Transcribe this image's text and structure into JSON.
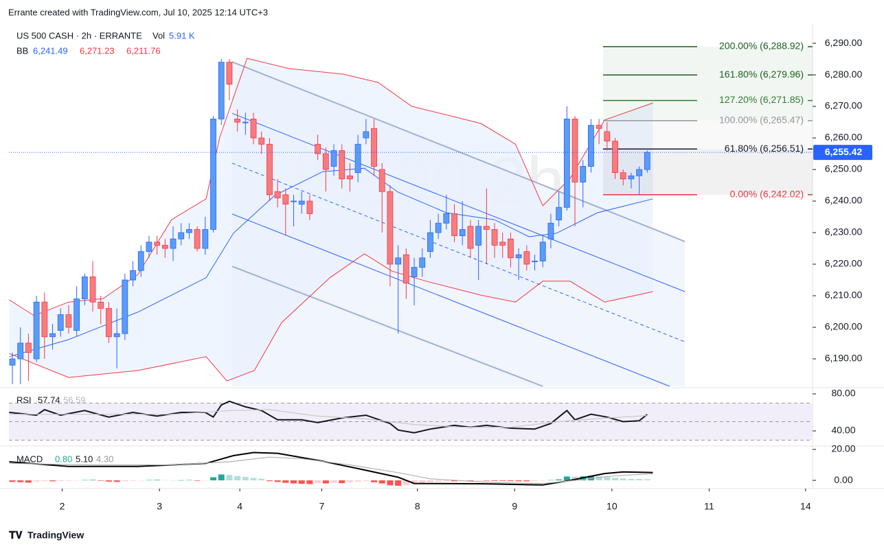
{
  "page": {
    "attribution": "Errante created with TradingView.com, Jul 10, 2025 12:14 UTC+3",
    "logo": "TradingView"
  },
  "chart_data": [
    {
      "type": "candlestick",
      "title": "US 500 CASH · 2h · ERRANTE",
      "volume": {
        "name": "Vol",
        "value": 5910,
        "label": "5.91 K"
      },
      "watermark": "US500  2h",
      "watermark_sub": "US 500 CASH",
      "up_color": "#5b9cf6",
      "down_color": "#f77c80",
      "x": [
        0,
        1,
        2,
        3,
        4,
        5,
        6,
        7,
        8,
        9,
        10,
        11,
        12,
        13,
        14,
        15,
        16,
        17,
        18,
        19,
        20,
        21,
        22,
        23,
        24,
        25,
        26,
        27,
        28,
        29,
        30,
        31,
        32,
        33,
        34,
        35,
        36,
        37,
        38,
        39,
        40,
        41,
        42,
        43,
        44,
        45,
        46,
        47,
        48,
        49,
        50,
        51,
        52,
        53,
        54,
        55,
        56,
        57,
        58,
        59,
        60,
        61,
        62,
        63,
        64,
        65,
        66,
        67,
        68,
        69,
        70,
        71,
        72,
        73,
        74,
        75,
        76,
        77,
        78,
        79
      ],
      "open": [
        6188,
        6190,
        6195,
        6190,
        6208,
        6197,
        6199,
        6204,
        6199,
        6209,
        6216,
        6208,
        6206,
        6197,
        6198,
        6215,
        6218,
        6224,
        6227,
        6226,
        6225,
        6228,
        6230,
        6231,
        6225,
        6231,
        6266,
        6284,
        6266,
        6265,
        6266,
        6260,
        6258,
        6243,
        6242,
        6240,
        6239,
        6240,
        6258,
        6255,
        6251,
        6256,
        6248,
        6249,
        6260,
        6263,
        6250,
        6243,
        6220,
        6223,
        6216,
        6219,
        6224,
        6230,
        6233,
        6236,
        6229,
        6232,
        6226,
        6232,
        6231,
        6227,
        6228,
        6222,
        6224,
        6221,
        6221,
        6228,
        6234,
        6238,
        6266,
        6246,
        6251,
        6264,
        6262,
        6259,
        6249,
        6247,
        6248,
        6250
      ],
      "high": [
        6192,
        6200,
        6198,
        6210,
        6211,
        6201,
        6206,
        6207,
        6213,
        6217,
        6221,
        6210,
        6208,
        6206,
        6217,
        6221,
        6226,
        6229,
        6229,
        6228,
        6232,
        6233,
        6233,
        6232,
        6235,
        6267,
        6285,
        6285,
        6269,
        6268,
        6268,
        6262,
        6260,
        6247,
        6244,
        6242,
        6243,
        6242,
        6261,
        6257,
        6258,
        6258,
        6252,
        6261,
        6266,
        6266,
        6252,
        6245,
        6226,
        6225,
        6222,
        6225,
        6234,
        6236,
        6242,
        6239,
        6240,
        6234,
        6234,
        6244,
        6233,
        6230,
        6230,
        6225,
        6226,
        6223,
        6229,
        6236,
        6243,
        6270,
        6267,
        6253,
        6266,
        6266,
        6265,
        6260,
        6250,
        6249,
        6251,
        6256
      ],
      "low": [
        6182,
        6182,
        6183,
        6189,
        6190,
        6193,
        6197,
        6198,
        6197,
        6207,
        6205,
        6201,
        6195,
        6187,
        6196,
        6213,
        6216,
        6222,
        6223,
        6222,
        6221,
        6226,
        6228,
        6224,
        6223,
        6230,
        6264,
        6272,
        6262,
        6261,
        6258,
        6255,
        6240,
        6238,
        6229,
        6232,
        6236,
        6234,
        6253,
        6243,
        6248,
        6244,
        6243,
        6246,
        6258,
        6248,
        6230,
        6213,
        6198,
        6209,
        6207,
        6216,
        6222,
        6228,
        6231,
        6227,
        6226,
        6222,
        6215,
        6220,
        6222,
        6222,
        6219,
        6215,
        6218,
        6218,
        6219,
        6225,
        6232,
        6237,
        6232,
        6238,
        6249,
        6258,
        6256,
        6247,
        6245,
        6244,
        6242,
        6249
      ],
      "close": [
        6190,
        6195,
        6192,
        6208,
        6197,
        6198,
        6204,
        6200,
        6209,
        6216,
        6208,
        6206,
        6197,
        6198,
        6215,
        6218,
        6224,
        6227,
        6226,
        6225,
        6228,
        6230,
        6231,
        6225,
        6231,
        6266,
        6284,
        6277,
        6265,
        6265,
        6260,
        6258,
        6242,
        6241,
        6239,
        6240,
        6240,
        6236,
        6255,
        6250,
        6256,
        6247,
        6247,
        6258,
        6262,
        6251,
        6243,
        6220,
        6222,
        6214,
        6219,
        6222,
        6230,
        6233,
        6236,
        6229,
        6231,
        6225,
        6232,
        6231,
        6226,
        6226,
        6222,
        6223,
        6220,
        6221,
        6227,
        6233,
        6238,
        6266,
        6246,
        6251,
        6264,
        6263,
        6259,
        6249,
        6247,
        6248,
        6250,
        6255.42
      ],
      "xlim": [
        -0.43,
        99.57
      ],
      "ylim": [
        6181.3,
        6296.1
      ],
      "xticks": [
        {
          "value": 6.2,
          "label": "2"
        },
        {
          "value": 18.3,
          "label": "3"
        },
        {
          "value": 28.3,
          "label": "4"
        },
        {
          "value": 38.5,
          "label": "7"
        },
        {
          "value": 50.4,
          "label": "8"
        },
        {
          "value": 62.5,
          "label": "9"
        },
        {
          "value": 74.6,
          "label": "10"
        },
        {
          "value": 86.7,
          "label": "11"
        },
        {
          "value": 98.7,
          "label": "14"
        }
      ],
      "yticks": [
        {
          "value": 6190,
          "label": "6,190.00"
        },
        {
          "value": 6200,
          "label": "6,200.00"
        },
        {
          "value": 6210,
          "label": "6,210.00"
        },
        {
          "value": 6220,
          "label": "6,220.00"
        },
        {
          "value": 6230,
          "label": "6,230.00"
        },
        {
          "value": 6240,
          "label": "6,240.00"
        },
        {
          "value": 6250,
          "label": "6,250.00"
        },
        {
          "value": 6260,
          "label": "6,260.00"
        },
        {
          "value": 6270,
          "label": "6,270.00"
        },
        {
          "value": 6280,
          "label": "6,280.00"
        },
        {
          "value": 6290,
          "label": "6,290.00"
        }
      ],
      "last_price": {
        "value": 6255.42,
        "label": "6,255.42",
        "color": "#2962ff"
      },
      "bollinger": {
        "name": "BB",
        "fill": "#e8f1fd",
        "legend": [
          {
            "value": 6241.49,
            "label": "6,241.49",
            "color": "#2962ff"
          },
          {
            "value": 6271.23,
            "label": "6,271.23",
            "color": "#f23645"
          },
          {
            "value": 6211.76,
            "label": "6,211.76",
            "color": "#f23645"
          }
        ],
        "lines": [
          {
            "color": "#2962ff",
            "x": [
              -0.4,
              7,
              15.6,
              24.1,
              27.5,
              32.6,
              38.6,
              43.8,
              48,
              54,
              60,
              64.3,
              67.7,
              72.8,
              79.7
            ],
            "values": [
              6190.7,
              6196.1,
              6204.8,
              6215.7,
              6229.8,
              6241.7,
              6249.3,
              6250.4,
              6242.8,
              6236.3,
              6234.1,
              6228.7,
              6229.8,
              6236.3,
              6240.7
            ]
          },
          {
            "color": "#f23645",
            "x": [
              -0.4,
              2.7,
              7,
              11.3,
              15.6,
              19.8,
              24.1,
              25.8,
              29.2,
              34.4,
              41.2,
              45.5,
              49.7,
              58.3,
              62.6,
              66,
              69.4,
              73.7,
              79.7
            ],
            "values": [
              6208.7,
              6203.7,
              6208,
              6209.1,
              6216.7,
              6234.1,
              6240.7,
              6260.2,
              6285.2,
              6282,
              6280.2,
              6277.6,
              6270,
              6264.6,
              6258,
              6238.5,
              6247.2,
              6265.7,
              6271.1
            ]
          },
          {
            "color": "#f23645",
            "x": [
              -0.4,
              7,
              15.6,
              24.1,
              26.7,
              30.1,
              33.5,
              39.5,
              43.8,
              47.2,
              51.5,
              58.3,
              62.6,
              66,
              69.4,
              73.7,
              79.7
            ],
            "values": [
              6191.7,
              6184.1,
              6186.3,
              6190.7,
              6183,
              6186.3,
              6201.5,
              6215.7,
              6223.3,
              6217.8,
              6214.6,
              6210.2,
              6208,
              6214.6,
              6214.6,
              6208,
              6211.3
            ]
          }
        ]
      },
      "channel": {
        "fill": "#eef3fb",
        "lines": [
          {
            "color": "#9fb0d6",
            "dash": false,
            "x": [
              27.35,
              83.68
            ],
            "values": [
              6284.1,
              6227.2
            ]
          },
          {
            "color": "#2962ff",
            "dash": false,
            "x": [
              27.35,
              83.68
            ],
            "values": [
              6267.8,
              6211.3
            ]
          },
          {
            "color": "#2962ff",
            "dash": true,
            "x": [
              27.35,
              83.68
            ],
            "values": [
              6252,
              6195.4
            ]
          },
          {
            "color": "#2962ff",
            "dash": false,
            "x": [
              27.35,
              81.8
            ],
            "values": [
              6235.9,
              6181.3
            ]
          },
          {
            "color": "#9fb0d6",
            "dash": false,
            "x": [
              27.35,
              66
            ],
            "values": [
              6219.3,
              6181.3
            ]
          }
        ]
      },
      "fib": {
        "x_start": 73.5,
        "levels": [
          {
            "value": 6242.02,
            "label": "0.00% (6,242.02)",
            "color": "#f23645"
          },
          {
            "value": 6256.51,
            "label": "61.80% (6,256.51)",
            "color": "#131722"
          },
          {
            "value": 6265.47,
            "label": "100.00% (6,265.47)",
            "color": "#9598a1"
          },
          {
            "value": 6271.85,
            "label": "127.20% (6,271.85)",
            "color": "#2e7d32"
          },
          {
            "value": 6279.96,
            "label": "161.80% (6,279.96)",
            "color": "#1b5e20"
          },
          {
            "value": 6288.92,
            "label": "200.00% (6,288.92)",
            "color": "#1b5e20"
          }
        ]
      }
    },
    {
      "type": "line",
      "name": "RSI",
      "legend": [
        57.74,
        56.59
      ],
      "ylim": [
        23.7,
        86.7
      ],
      "yticks": [
        {
          "value": 80,
          "label": "80.00"
        },
        {
          "value": 40,
          "label": "40.00"
        }
      ],
      "levels": [
        70,
        50,
        30
      ],
      "band": "#ede7f6",
      "series": [
        {
          "color": "#131722",
          "x": [
            -0.4,
            3,
            4,
            6,
            9,
            12,
            15,
            18,
            21,
            24,
            25,
            26,
            27,
            29,
            31,
            33,
            36,
            38,
            41,
            44,
            47,
            48,
            50,
            52,
            55,
            57,
            59,
            62,
            65,
            67,
            69,
            70,
            72,
            74,
            76,
            78,
            79
          ],
          "values": [
            60,
            57,
            63,
            57,
            62,
            55,
            60,
            56,
            60,
            60,
            55,
            68,
            72,
            66,
            62,
            52,
            52,
            49,
            54,
            57,
            48,
            41,
            38,
            42,
            46,
            44,
            46,
            43,
            42,
            48,
            62,
            52,
            58,
            55,
            50,
            51,
            57.74
          ]
        },
        {
          "color": "#c8c8c8",
          "x": [
            -0.4,
            10,
            20,
            27,
            32,
            38,
            44,
            50,
            56,
            62,
            68,
            74,
            79
          ],
          "values": [
            58,
            58,
            58,
            62,
            63,
            56,
            53,
            47,
            44,
            44,
            50,
            54,
            56.59
          ]
        }
      ]
    },
    {
      "type": "line",
      "name": "MACD",
      "legend": [
        0.8,
        5.1,
        4.3
      ],
      "legend_labels": [
        "0.80",
        "5.10",
        "4.30"
      ],
      "legend_colors": [
        "#26a69a",
        "#131722",
        "#9598a1"
      ],
      "ylim": [
        -5.3,
        22.2
      ],
      "yticks": [
        {
          "value": 20,
          "label": "20.00"
        },
        {
          "value": 0,
          "label": "0.00"
        }
      ],
      "hist_x": [
        0,
        1,
        2,
        3,
        4,
        5,
        6,
        7,
        8,
        9,
        10,
        11,
        12,
        13,
        14,
        15,
        16,
        17,
        18,
        19,
        20,
        21,
        22,
        23,
        24,
        25,
        26,
        27,
        28,
        29,
        30,
        31,
        32,
        33,
        34,
        35,
        36,
        37,
        38,
        39,
        40,
        41,
        42,
        43,
        44,
        45,
        46,
        47,
        48,
        49,
        50,
        51,
        52,
        53,
        54,
        55,
        56,
        57,
        58,
        59,
        60,
        61,
        62,
        63,
        64,
        65,
        66,
        67,
        68,
        69,
        70,
        71,
        72,
        73,
        74,
        75,
        76,
        77,
        78,
        79
      ],
      "histogram": [
        -1,
        -1.2,
        -1.5,
        -0.8,
        -0.5,
        -0.6,
        -0.4,
        -0.3,
        -0.2,
        0.2,
        0.3,
        -0.3,
        -0.8,
        -1.0,
        -0.6,
        -0.3,
        -0.1,
        0.2,
        0.3,
        0.2,
        0.1,
        0.1,
        0.2,
        -0.3,
        -0.2,
        2.0,
        3.8,
        3.5,
        2.8,
        2.2,
        1.6,
        1.0,
        -0.5,
        -1.0,
        -1.6,
        -2.0,
        -2.2,
        -2.4,
        -1.8,
        -2.0,
        -1.5,
        -1.8,
        -1.2,
        -0.8,
        -0.4,
        -1.2,
        -2.0,
        -3.2,
        -3.5,
        -3.0,
        -2.4,
        -1.8,
        -1.2,
        -0.8,
        -0.5,
        -0.6,
        -0.4,
        -0.5,
        -0.3,
        -0.3,
        -0.4,
        -0.4,
        -0.5,
        -0.6,
        -0.6,
        -0.5,
        -0.2,
        0.2,
        0.6,
        2.5,
        2.4,
        2.6,
        3.0,
        2.6,
        2.2,
        1.6,
        1.2,
        1.0,
        0.9,
        0.8
      ],
      "hist_colors": [
        "#26a69a",
        "#b2dfdb",
        "#ff5252",
        "#ffcdd2"
      ],
      "series": [
        {
          "color": "#000000",
          "x": [
            -0.4,
            7,
            15.6,
            24.1,
            27.5,
            30,
            33,
            38.6,
            43.8,
            48,
            50,
            58.3,
            66,
            69.4,
            73.7,
            76,
            79.7
          ],
          "values": [
            12,
            9,
            9,
            11,
            16,
            18,
            17.5,
            12.4,
            6.7,
            2,
            -2,
            -2.2,
            -3,
            0,
            4.4,
            5.5,
            5.1
          ]
        },
        {
          "color": "#b0b0b0",
          "x": [
            -0.4,
            10,
            20,
            27,
            32,
            36,
            42,
            48,
            52,
            60,
            66,
            70,
            75,
            79.7
          ],
          "values": [
            11,
            10,
            10,
            12,
            15,
            14,
            10,
            5,
            1,
            -1.5,
            -2,
            0,
            3,
            4.3
          ]
        }
      ]
    }
  ]
}
